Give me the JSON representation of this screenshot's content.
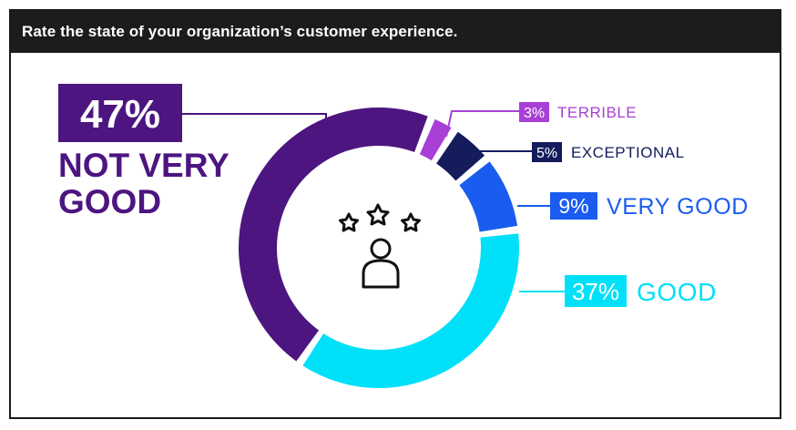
{
  "chart_data": {
    "type": "pie",
    "title": "Rate the state of your organization’s customer experience.",
    "slices": [
      {
        "category": "TERRIBLE",
        "value": 3,
        "value_label": "3%",
        "color": "#a83fd6"
      },
      {
        "category": "EXCEPTIONAL",
        "value": 5,
        "value_label": "5%",
        "color": "#141c5c"
      },
      {
        "category": "VERY GOOD",
        "value": 9,
        "value_label": "9%",
        "color": "#1a5cf0"
      },
      {
        "category": "GOOD",
        "value": 37,
        "value_label": "37%",
        "color": "#00e0f8"
      },
      {
        "category": "NOT VERY GOOD",
        "value": 47,
        "value_label": "47%",
        "color": "#4d1580"
      }
    ],
    "center_icon": "customer-rating-stars-icon"
  }
}
